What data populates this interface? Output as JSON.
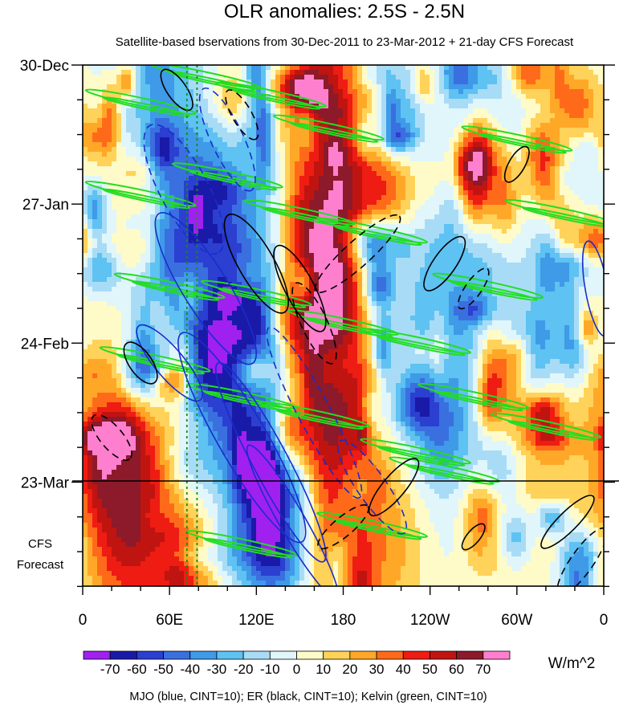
{
  "chart_data": {
    "type": "heatmap",
    "title": "OLR anomalies: 2.5S - 2.5N",
    "subtitle": "Satellite-based bservations from 30-Dec-2011 to 23-Mar-2012 + 21-day CFS Forecast",
    "x_ticks": [
      {
        "lon": 0,
        "label": "0"
      },
      {
        "lon": 60,
        "label": "60E"
      },
      {
        "lon": 120,
        "label": "120E"
      },
      {
        "lon": 180,
        "label": "180"
      },
      {
        "lon": 240,
        "label": "120W"
      },
      {
        "lon": 300,
        "label": "60W"
      },
      {
        "lon": 360,
        "label": "0"
      }
    ],
    "xlim": [
      0,
      360
    ],
    "time_axis": {
      "start": "30-Dec-2011",
      "observed_end": "23-Mar-2012",
      "forecast_days": 21,
      "major_ticks": [
        {
          "label": "30-Dec",
          "day": 0
        },
        {
          "label": "27-Jan",
          "day": 28
        },
        {
          "label": "24-Feb",
          "day": 56
        },
        {
          "label": "23-Mar",
          "day": 84
        }
      ],
      "forecast_label_lines": [
        "CFS",
        "Forecast"
      ]
    },
    "colorbar": {
      "unit": "W/m^2",
      "levels": [
        -70,
        -60,
        -50,
        -40,
        -30,
        -20,
        -10,
        0,
        10,
        20,
        30,
        40,
        50,
        60,
        70
      ],
      "labels": [
        "-70",
        "-60",
        "-50",
        "-40",
        "-30",
        "-20",
        "-10",
        "0",
        "10",
        "20",
        "30",
        "40",
        "50",
        "60",
        "70"
      ],
      "colors": [
        "#a020f0",
        "#1a1aa8",
        "#2b3fd0",
        "#3a6fe0",
        "#3f9ae8",
        "#5ec2f2",
        "#a8dcf6",
        "#e0f6fb",
        "#fffbc8",
        "#ffd25a",
        "#ffa828",
        "#ff6a1a",
        "#ee1c12",
        "#c01410",
        "#8c1a2a",
        "#ff7fcf"
      ]
    },
    "contour_legend": "MJO (blue, CINT=10); ER (black, CINT=10); Kelvin (green, CINT=10)",
    "series": [
      {
        "name": "MJO",
        "color": "#1a2ccc",
        "cint": 10
      },
      {
        "name": "ER",
        "color": "#000000",
        "cint": 10
      },
      {
        "name": "Kelvin",
        "color": "#22dd22",
        "cint": 10
      }
    ]
  }
}
